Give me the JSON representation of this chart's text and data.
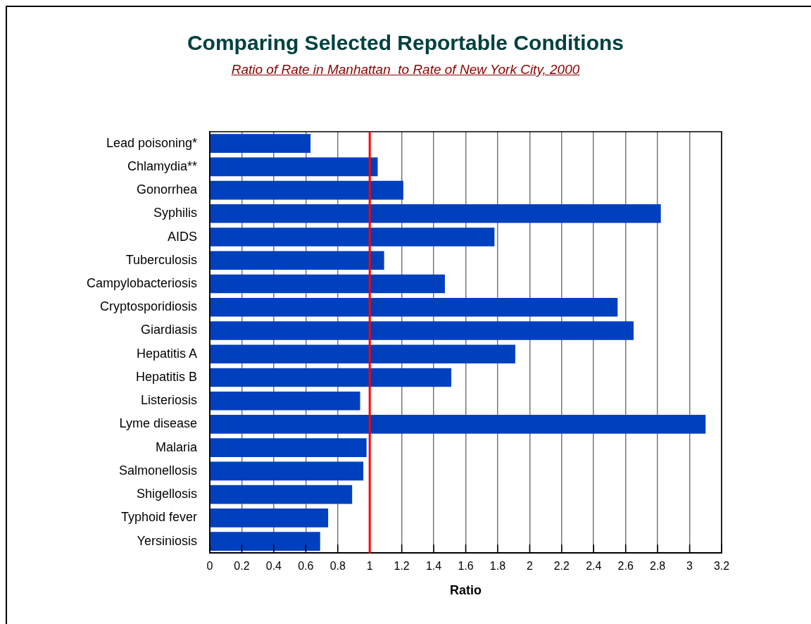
{
  "chart_data": {
    "type": "bar",
    "orientation": "horizontal",
    "title": "Comparing Selected Reportable Conditions",
    "subtitle": "Ratio of Rate in Manhattan  to Rate of New York City, 2000",
    "xlabel": "Ratio",
    "categories": [
      "Lead poisoning*",
      "Chlamydia**",
      "Gonorrhea",
      "Syphilis",
      "AIDS",
      "Tuberculosis",
      "Campylobacteriosis",
      "Cryptosporidiosis",
      "Giardiasis",
      "Hepatitis A",
      "Hepatitis B",
      "Listeriosis",
      "Lyme disease",
      "Malaria",
      "Salmonellosis",
      "Shigellosis",
      "Typhoid fever",
      "Yersiniosis"
    ],
    "values": [
      0.63,
      1.05,
      1.21,
      2.82,
      1.78,
      1.09,
      1.47,
      2.55,
      2.65,
      1.91,
      1.51,
      0.94,
      3.1,
      0.98,
      0.96,
      0.89,
      0.74,
      0.69
    ],
    "color": "#0040be",
    "xlim": [
      0,
      3.2
    ],
    "xticks": [
      0,
      0.2,
      0.4,
      0.6,
      0.8,
      1,
      1.2,
      1.4,
      1.6,
      1.8,
      2,
      2.2,
      2.4,
      2.6,
      2.8,
      3,
      3.2
    ],
    "ref_lines": [
      {
        "axis": "x",
        "value": 1,
        "color": "#ff0000"
      }
    ],
    "grid": "x",
    "legend": false
  }
}
